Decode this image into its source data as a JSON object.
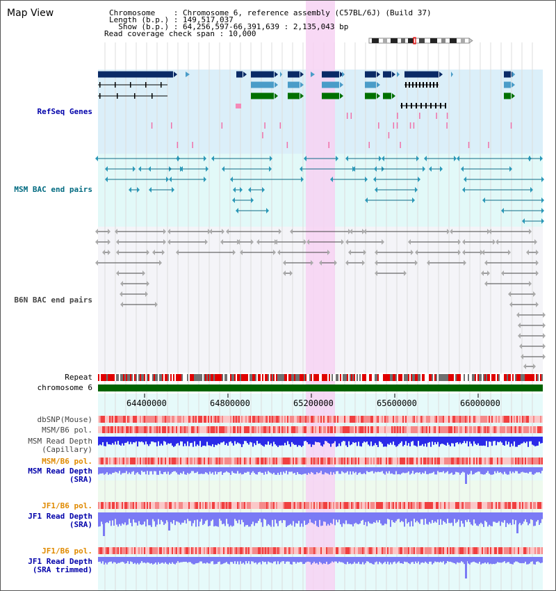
{
  "window": {
    "title": "Map View"
  },
  "header": {
    "line1": "Chromosome    : Chromosome 6, reference assembly (C57BL/6J) (Build 37)",
    "line2": "Length (b.p.) : 149,517,037",
    "line3": "  Show (b.p.) : 64,256,597-66,391,639 : 2,135,043 bp",
    "line4": "Read coverage check span : 10,000"
  },
  "tracks": {
    "refseq": "RefSeq Genes",
    "msm_bac": "MSM BAC end pairs",
    "b6n_bac": "B6N BAC end pairs",
    "repeat": "Repeat",
    "chromosome": "chromosome 6",
    "dbsnp": "dbSNP(Mouse)",
    "msm_pol_1": "MSM/B6 pol.",
    "msm_read_cap": "MSM Read Depth\n(Capillary)",
    "msm_pol_2": "MSM/B6 pol.",
    "msm_read_sra": "MSM Read Depth\n(SRA)",
    "jf1_pol_1": "JF1/B6 pol.",
    "jf1_read_sra": "JF1 Read Depth\n(SRA)",
    "jf1_pol_2": "JF1/B6 pol.",
    "jf1_read_trim": "JF1 Read Depth\n(SRA trimmed)"
  },
  "axis": {
    "ticks": [
      "64400000",
      "64800000",
      "65200000",
      "65600000",
      "66000000"
    ]
  },
  "colors": {
    "refseq_bg": "#dbeff9",
    "bac_bg": "#e2f9f8",
    "highlight": "#f7d2f3",
    "chromosome_bar": "#006400",
    "gene_navy": "#0a2a66",
    "gene_light": "#4a9cc8",
    "gene_green": "#007000",
    "read_depth_capillary": "#2a2ae8",
    "read_depth_sra": "#7a7af5"
  }
}
